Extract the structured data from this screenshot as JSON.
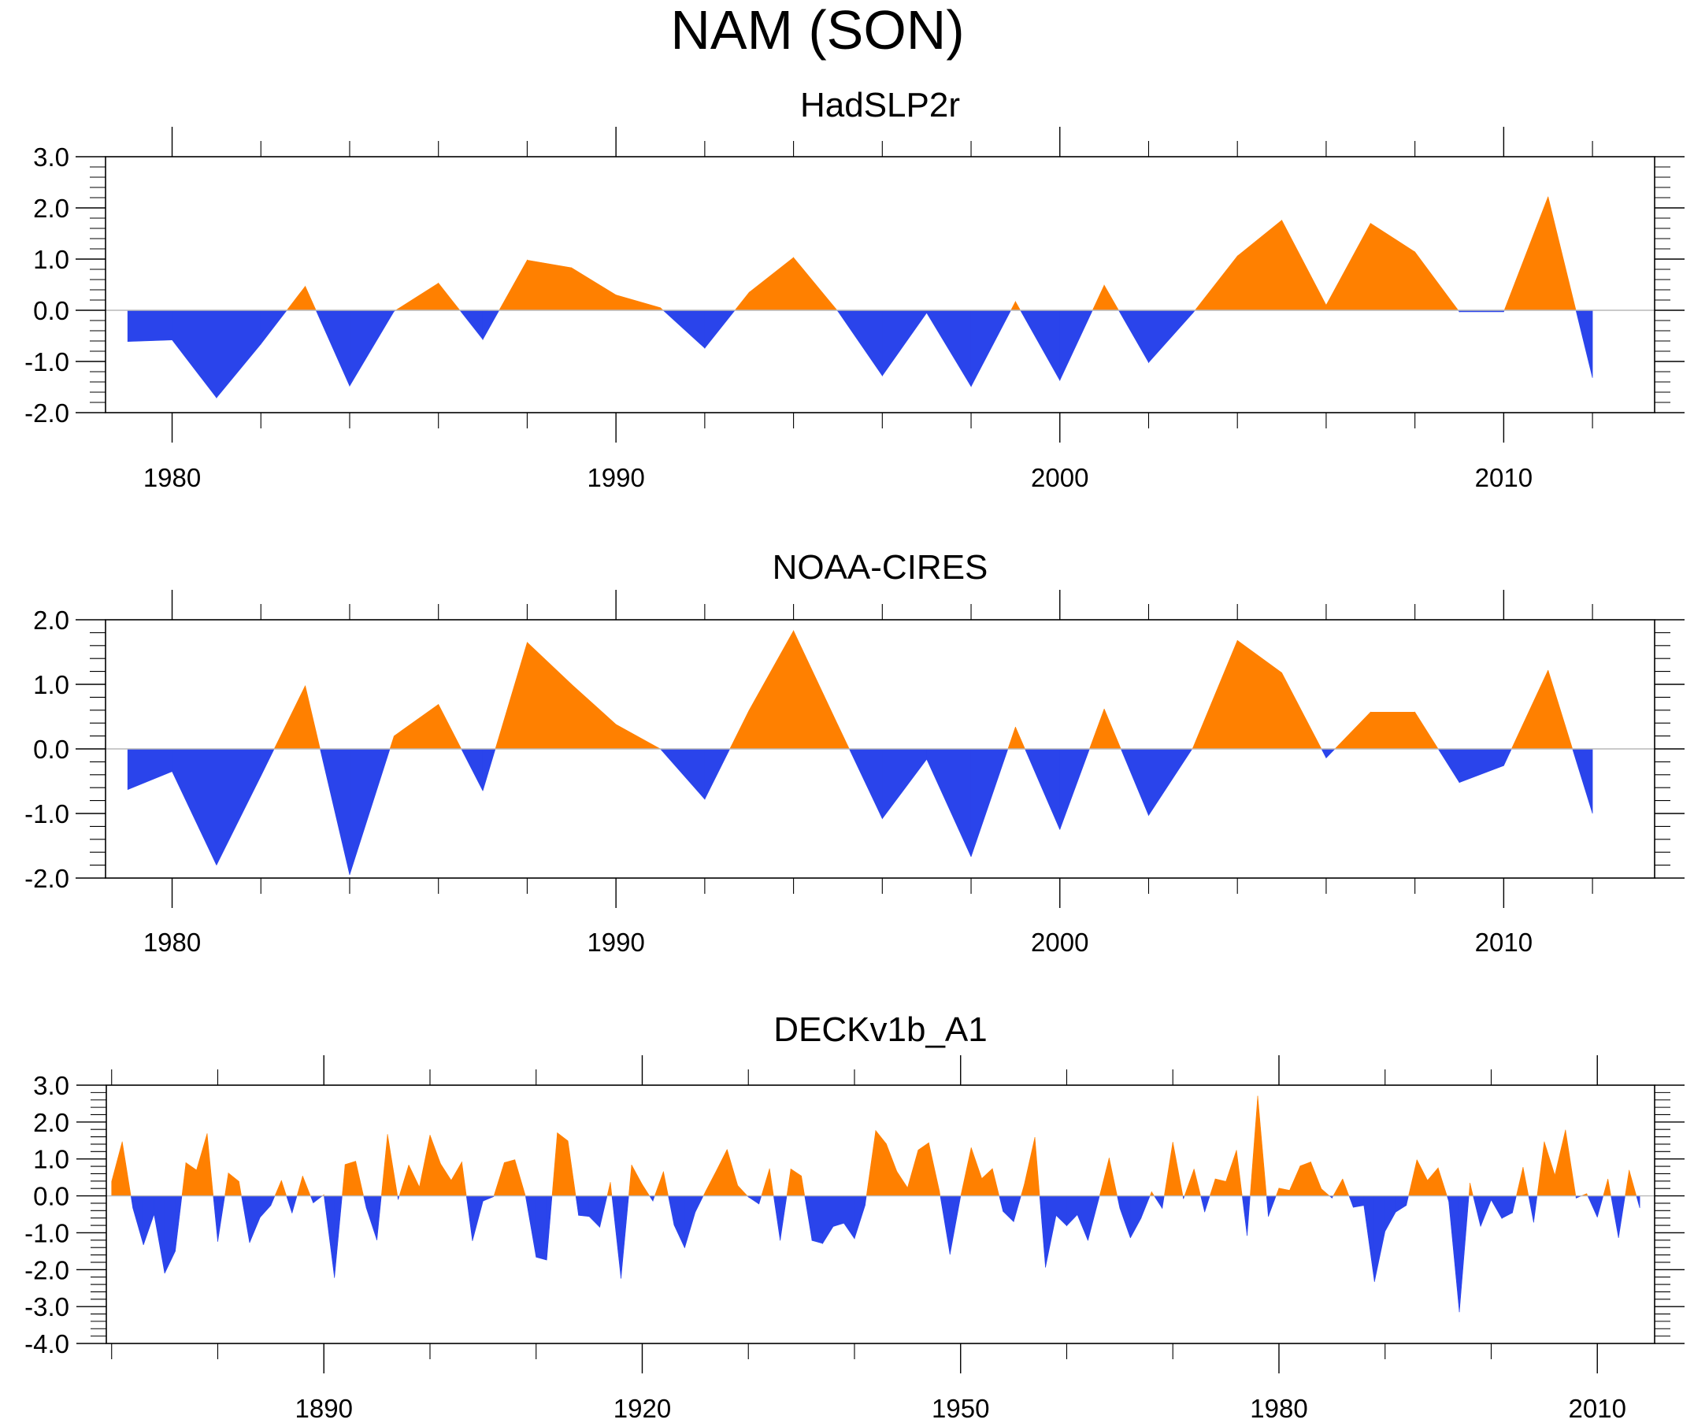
{
  "figure_title": "NAM (SON)",
  "colors": {
    "positive": "#ff8000",
    "negative": "#2a44eb",
    "zero_line": "#b8b8b8"
  },
  "chart_data": [
    {
      "type": "area",
      "title": "HadSLP2r",
      "xlabel": "",
      "ylabel": "",
      "xlim": [
        1978.5,
        2013.4
      ],
      "ylim": [
        -2.0,
        3.0
      ],
      "x_major_ticks": [
        1980,
        1990,
        2000,
        2010
      ],
      "x_tick_labels": [
        "1980",
        "1990",
        "2000",
        "2010"
      ],
      "x_minor_step": 2,
      "y_major_ticks": [
        -2.0,
        -1.0,
        0.0,
        1.0,
        2.0,
        3.0
      ],
      "y_tick_labels": [
        "-2.0",
        "-1.0",
        "0.0",
        "1.0",
        "2.0",
        "3.0"
      ],
      "y_minor_step": 0.2,
      "grid": false,
      "reference_line": 0.0,
      "fill_above": "positive",
      "fill_below": "negative",
      "x_start": 1979,
      "values": [
        -0.61,
        -0.58,
        -1.71,
        -0.66,
        0.47,
        -1.48,
        -0.02,
        0.53,
        -0.57,
        0.98,
        0.83,
        0.3,
        0.05,
        -0.74,
        0.35,
        1.03,
        -0.02,
        -1.28,
        -0.05,
        -1.49,
        0.17,
        -1.37,
        0.49,
        -1.02,
        -0.05,
        1.06,
        1.76,
        0.1,
        1.7,
        1.14,
        -0.03,
        -0.03,
        2.22,
        -1.32
      ]
    },
    {
      "type": "area",
      "title": "NOAA-CIRES",
      "xlabel": "",
      "ylabel": "",
      "xlim": [
        1978.5,
        2013.4
      ],
      "ylim": [
        -2.0,
        2.0
      ],
      "x_major_ticks": [
        1980,
        1990,
        2000,
        2010
      ],
      "x_tick_labels": [
        "1980",
        "1990",
        "2000",
        "2010"
      ],
      "x_minor_step": 2,
      "y_major_ticks": [
        -2.0,
        -1.0,
        0.0,
        1.0,
        2.0
      ],
      "y_tick_labels": [
        "-2.0",
        "-1.0",
        "0.0",
        "1.0",
        "2.0"
      ],
      "y_minor_step": 0.2,
      "grid": false,
      "reference_line": 0.0,
      "fill_above": "positive",
      "fill_below": "negative",
      "x_start": 1979,
      "values": [
        -0.63,
        -0.35,
        -1.8,
        -0.42,
        0.98,
        -1.95,
        0.2,
        0.69,
        -0.65,
        1.65,
        1.0,
        0.38,
        0.0,
        -0.78,
        0.6,
        1.83,
        0.37,
        -1.08,
        -0.16,
        -1.67,
        0.34,
        -1.25,
        0.62,
        -1.03,
        0.02,
        1.68,
        1.18,
        -0.14,
        0.57,
        0.57,
        -0.52,
        -0.26,
        1.22,
        -1.0
      ]
    },
    {
      "type": "area",
      "title": "DECKv1b_A1",
      "xlabel": "",
      "ylabel": "",
      "xlim": [
        1869.5,
        2015.4
      ],
      "ylim": [
        -4.0,
        3.0
      ],
      "x_major_ticks": [
        1890,
        1920,
        1950,
        1980,
        2010
      ],
      "x_tick_labels": [
        "1890",
        "1920",
        "1950",
        "1980",
        "2010"
      ],
      "x_minor_step": 10,
      "y_major_ticks": [
        -4.0,
        -3.0,
        -2.0,
        -1.0,
        0.0,
        1.0,
        2.0,
        3.0
      ],
      "y_tick_labels": [
        "-4.0",
        "-3.0",
        "-2.0",
        "-1.0",
        "0.0",
        "1.0",
        "2.0",
        "3.0"
      ],
      "y_minor_step": 0.2,
      "grid": false,
      "reference_line": 0.0,
      "fill_above": "positive",
      "fill_below": "negative",
      "x_start": 1870,
      "values": [
        0.39,
        1.47,
        -0.33,
        -1.33,
        -0.5,
        -2.1,
        -1.5,
        0.9,
        0.7,
        1.69,
        -1.24,
        0.62,
        0.39,
        -1.27,
        -0.58,
        -0.26,
        0.42,
        -0.47,
        0.54,
        -0.19,
        0.03,
        -2.22,
        0.85,
        0.94,
        -0.33,
        -1.2,
        1.67,
        -0.1,
        0.84,
        0.24,
        1.65,
        0.87,
        0.42,
        0.92,
        -1.22,
        -0.14,
        -0.02,
        0.9,
        0.98,
        0.0,
        -1.66,
        -1.74,
        1.71,
        1.49,
        -0.53,
        -0.56,
        -0.85,
        0.37,
        -2.24,
        0.84,
        0.31,
        -0.14,
        0.66,
        -0.79,
        -1.41,
        -0.44,
        0.14,
        0.69,
        1.26,
        0.28,
        -0.03,
        -0.22,
        0.74,
        -1.21,
        0.73,
        0.54,
        -1.21,
        -1.29,
        -0.83,
        -0.74,
        -1.16,
        -0.26,
        1.77,
        1.41,
        0.66,
        0.22,
        1.24,
        1.44,
        0.14,
        -1.59,
        -0.02,
        1.31,
        0.47,
        0.74,
        -0.42,
        -0.7,
        0.31,
        1.59,
        -1.94,
        -0.53,
        -0.81,
        -0.51,
        -1.21,
        -0.11,
        1.03,
        -0.33,
        -1.14,
        -0.61,
        0.11,
        -0.34,
        1.46,
        -0.08,
        0.73,
        -0.44,
        0.46,
        0.39,
        1.24,
        -1.08,
        2.71,
        -0.56,
        0.21,
        0.15,
        0.81,
        0.92,
        0.19,
        -0.06,
        0.46,
        -0.31,
        -0.26,
        -2.33,
        -0.96,
        -0.44,
        -0.26,
        0.98,
        0.42,
        0.76,
        -0.15,
        -3.15,
        0.35,
        -0.83,
        -0.11,
        -0.61,
        -0.46,
        0.78,
        -0.72,
        1.47,
        0.56,
        1.79,
        -0.06,
        0.06,
        -0.58,
        0.46,
        -1.14,
        0.7,
        -0.33
      ]
    }
  ]
}
